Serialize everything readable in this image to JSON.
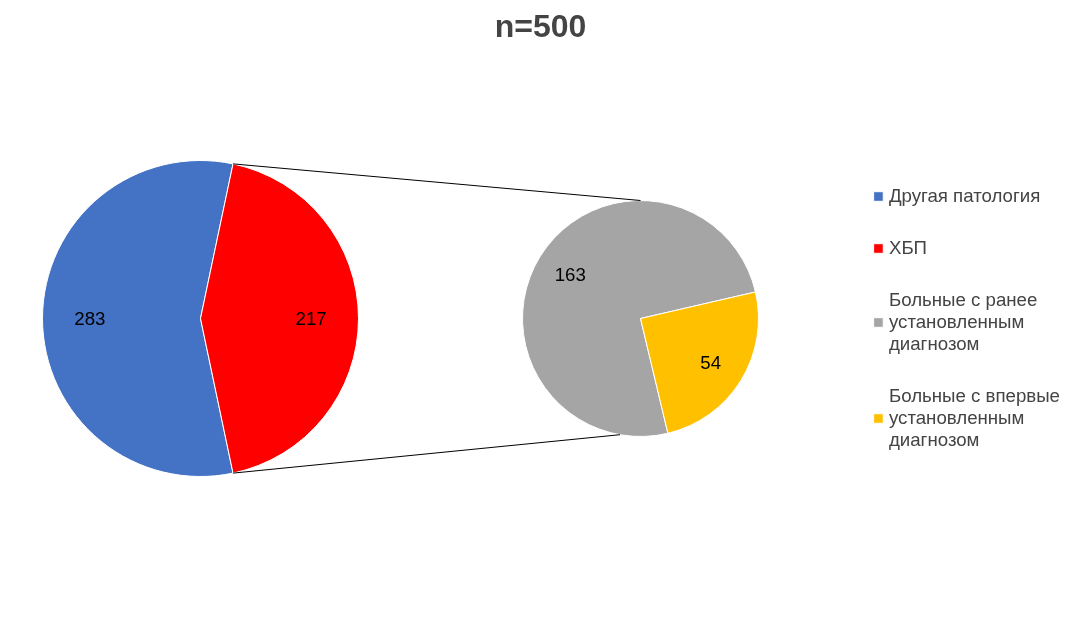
{
  "chart_data": [
    {
      "type": "pie",
      "title": "n=500",
      "categories": [
        "Другая патология",
        "ХБП"
      ],
      "values": [
        283,
        217
      ],
      "colors": [
        "#4472c4",
        "#ff0000"
      ],
      "data_labels": true,
      "legend": "right"
    },
    {
      "type": "pie",
      "categories": [
        "Больные с ранее установленным диагнозом",
        "Больные с впервые установленным диагнозом"
      ],
      "values": [
        163,
        54
      ],
      "colors": [
        "#a5a5a5",
        "#ffc000"
      ],
      "data_labels": true,
      "legend": "right"
    }
  ]
}
